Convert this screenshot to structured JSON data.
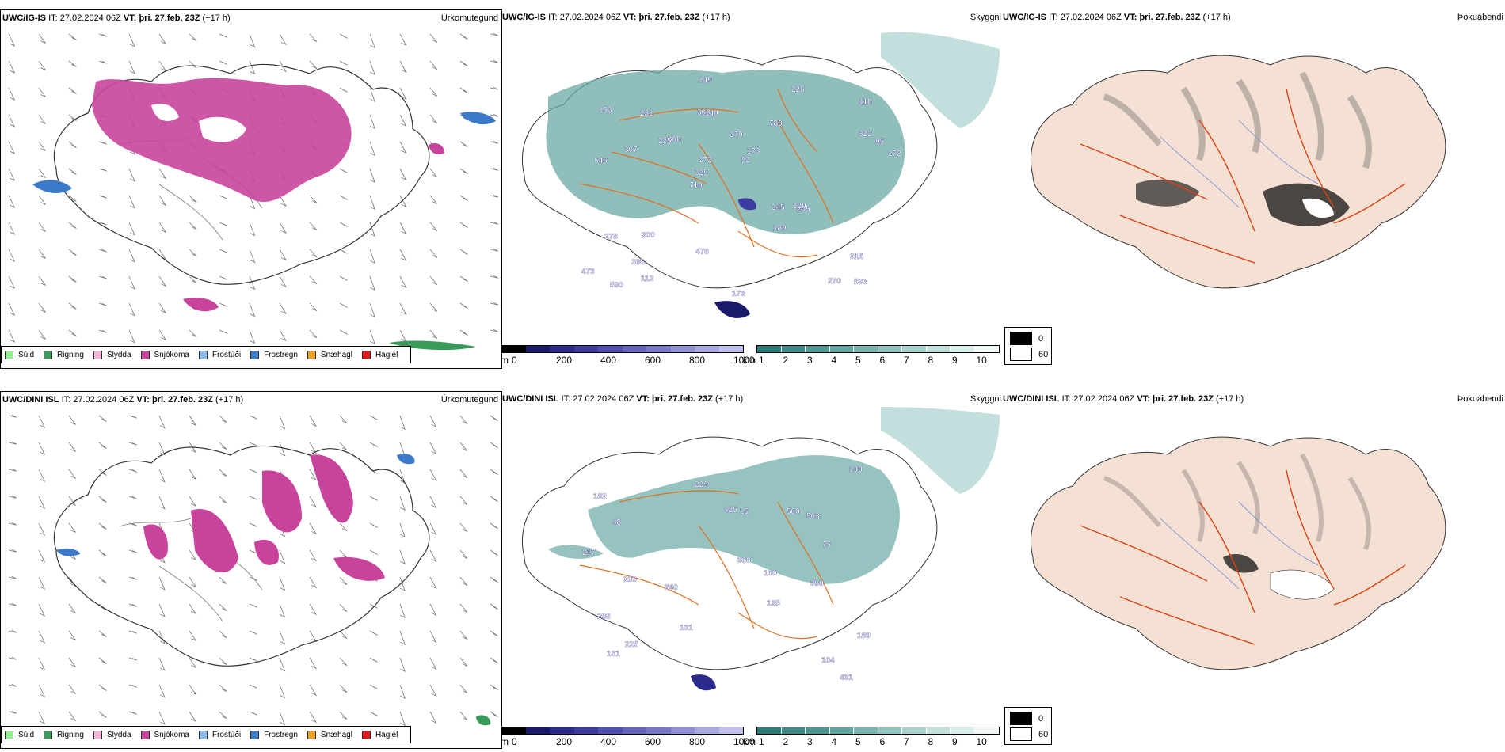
{
  "rows": [
    {
      "id": "row1",
      "model": "UWC/IG-IS",
      "it_label": "IT:",
      "it_value": "27.02.2024 06Z",
      "vt_label": "VT:",
      "vt_value": "þri. 27.feb. 23Z",
      "lead": "(+17 h)"
    },
    {
      "id": "row2",
      "model": "UWC/DINI ISL",
      "it_label": "IT:",
      "it_value": "27.02.2024 06Z",
      "vt_label": "VT:",
      "vt_value": "þri. 27.feb. 23Z",
      "lead": "(+17 h)"
    }
  ],
  "panel_titles": {
    "precip": "Úrkomutegund",
    "visibility": "Skyggni",
    "fog": "Þokuábendi"
  },
  "precip_legend": [
    {
      "label": "Súld",
      "color": "#90ee90"
    },
    {
      "label": "Rigning",
      "color": "#3a9a5a"
    },
    {
      "label": "Slydda",
      "color": "#f4b6d8"
    },
    {
      "label": "Snjókoma",
      "color": "#c8449c"
    },
    {
      "label": "Frostúði",
      "color": "#8cbcf0"
    },
    {
      "label": "Frostregn",
      "color": "#3a7ac8"
    },
    {
      "label": "Snæhagl",
      "color": "#f0a020"
    },
    {
      "label": "Haglél",
      "color": "#e01818"
    }
  ],
  "visibility_colorbar": {
    "m_unit": "m",
    "m_ticks": [
      "0",
      "200",
      "400",
      "600",
      "800",
      "1000"
    ],
    "m_colors": [
      "#000000",
      "#1a1a6a",
      "#2b2b8c",
      "#3c3ca0",
      "#5050b0",
      "#6464bc",
      "#7878c8",
      "#9090d4",
      "#a8a8e0",
      "#c0c0ec"
    ],
    "km_unit": "km",
    "km_ticks": [
      "1",
      "2",
      "3",
      "4",
      "5",
      "6",
      "7",
      "8",
      "9",
      "10"
    ],
    "km_colors": [
      "#2a7c78",
      "#3d8a86",
      "#4e9894",
      "#62a6a2",
      "#78b4b0",
      "#90c4c0",
      "#a8d2ce",
      "#c0e0dc",
      "#d8eeea",
      "#f0f8f6"
    ]
  },
  "fog_legend": [
    {
      "label": "0",
      "color": "#000000"
    },
    {
      "label": "60",
      "color": "#ffffff"
    }
  ],
  "visibility_labels_row1": [
    "593",
    "646",
    "418",
    "710",
    "783",
    "590",
    "308",
    "270",
    "278",
    "308",
    "473",
    "306",
    "140",
    "173",
    "205",
    "153",
    "149",
    "272",
    "245",
    "322",
    "325",
    "478",
    "272",
    "231",
    "226",
    "200",
    "270",
    "216",
    "120",
    "173",
    "225",
    "307",
    "189",
    "112",
    "95",
    "52"
  ],
  "visibility_labels_row2": [
    "431",
    "203",
    "195",
    "182",
    "189",
    "48",
    "225",
    "340",
    "503",
    "425",
    "560",
    "104",
    "131",
    "229",
    "160",
    "298",
    "399",
    "308",
    "217",
    "181",
    "133",
    "15",
    "75"
  ],
  "wind_barbs_note": ""
}
